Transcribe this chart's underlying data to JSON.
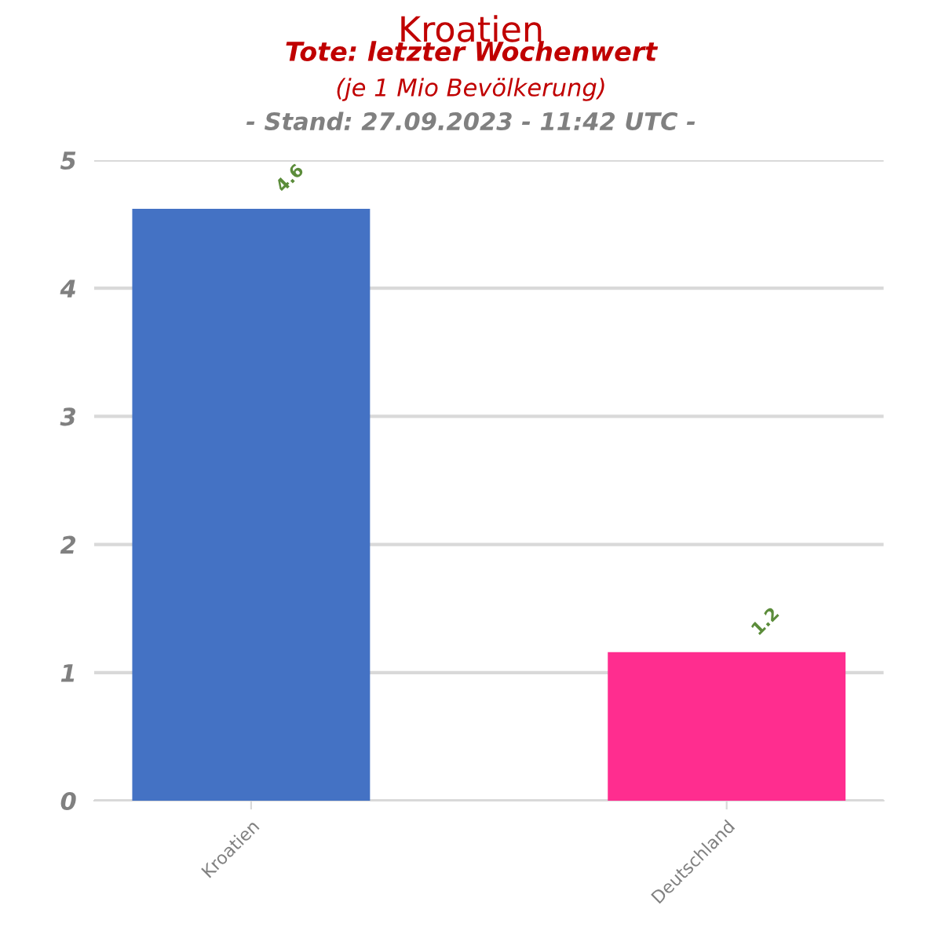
{
  "chart_data": {
    "type": "bar",
    "title": "Kroatien",
    "subtitle": "Tote: letzter Wochenwert\n(je 1 Mio Bevölkerung)\n- Stand: 27.09.2023 - 11:42 UTC -",
    "categories": [
      "Kroatien",
      "Deutschland"
    ],
    "values": [
      4.62,
      1.16
    ],
    "colors": [
      "#4472c4",
      "#ff2d8f"
    ],
    "value_labels": [
      "4.6",
      "1.2"
    ],
    "ylim": [
      0,
      5
    ],
    "yticks": [
      0,
      1,
      2,
      3,
      4,
      5
    ],
    "grid": "y"
  }
}
